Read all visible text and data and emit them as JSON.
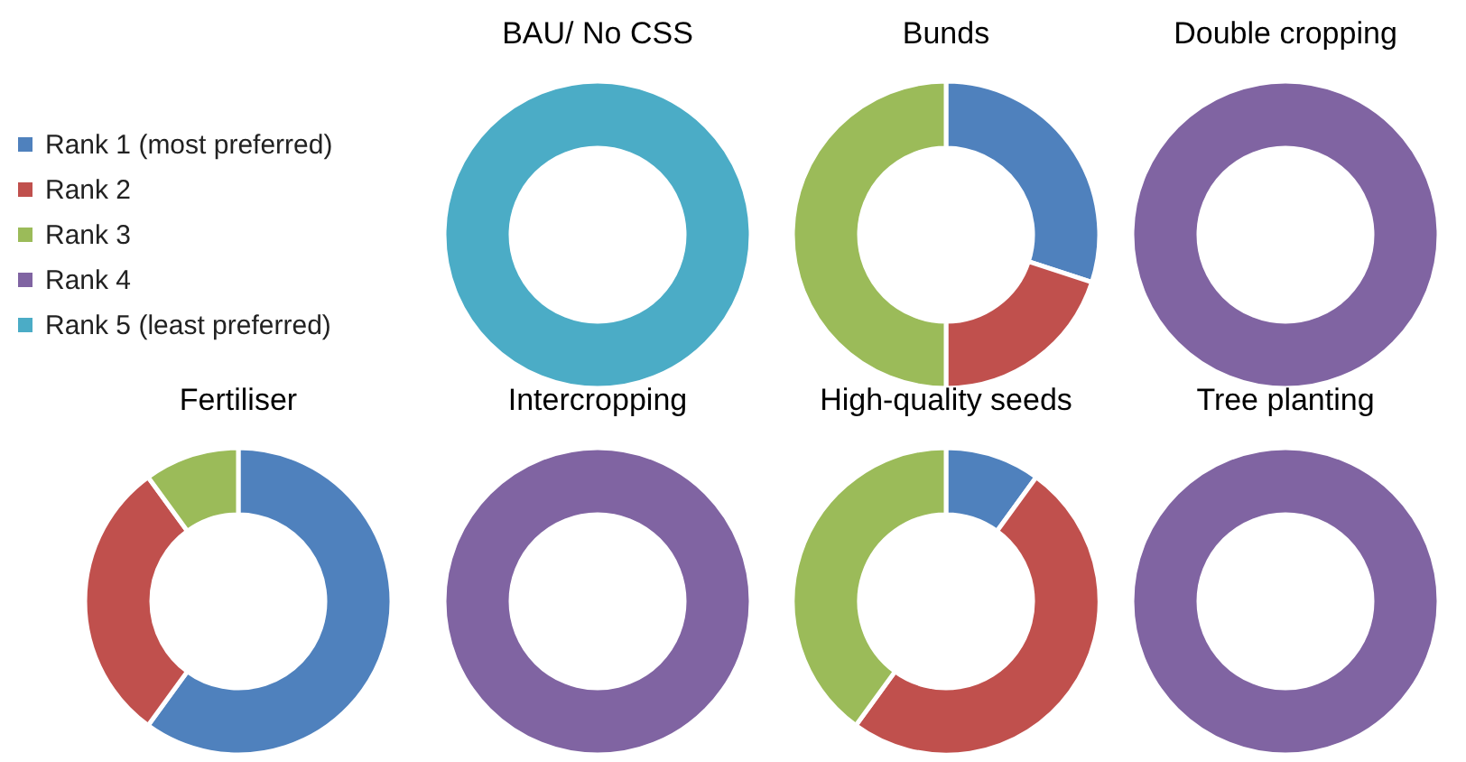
{
  "chart_data": [
    {
      "type": "donut",
      "title": "BAU/ No CSS",
      "categories": [
        "Rank 1 (most preferred)",
        "Rank 2",
        "Rank 3",
        "Rank 4",
        "Rank 5 (least preferred)"
      ],
      "values": [
        0,
        0,
        0,
        0,
        100
      ],
      "colors": [
        "#4f81bd",
        "#c0504d",
        "#9bbb59",
        "#8064a2",
        "#4bacc6"
      ],
      "legend": "left"
    },
    {
      "type": "donut",
      "title": "Bunds",
      "values": [
        30,
        20,
        50,
        0,
        0
      ]
    },
    {
      "type": "donut",
      "title": "Double cropping",
      "values": [
        0,
        0,
        0,
        100,
        0
      ]
    },
    {
      "type": "donut",
      "title": "Fertiliser",
      "values": [
        60,
        30,
        10,
        0,
        0
      ]
    },
    {
      "type": "donut",
      "title": "Intercropping",
      "values": [
        0,
        0,
        0,
        100,
        0
      ]
    },
    {
      "type": "donut",
      "title": "High-quality seeds",
      "values": [
        10,
        50,
        40,
        0,
        0
      ]
    },
    {
      "type": "donut",
      "title": "Tree planting",
      "values": [
        0,
        0,
        0,
        100,
        0
      ]
    }
  ]
}
